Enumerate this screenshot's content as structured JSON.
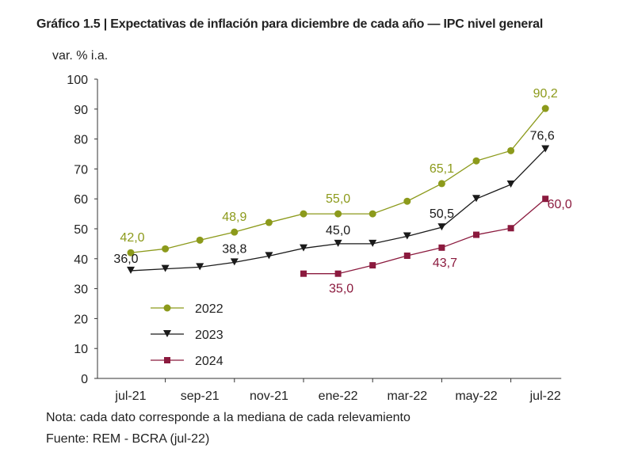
{
  "chart_data": {
    "type": "line",
    "title": "Gráfico 1.5 | Expectativas de inflación para diciembre de cada año — IPC nivel general",
    "ylabel": "var. % i.a.",
    "xlabel": "",
    "ylim": [
      0,
      100
    ],
    "yticks": [
      0,
      10,
      20,
      30,
      40,
      50,
      60,
      70,
      80,
      90,
      100
    ],
    "x": [
      "jul-21",
      "ago-21",
      "sep-21",
      "oct-21",
      "nov-21",
      "dic-21",
      "ene-22",
      "feb-22",
      "mar-22",
      "abr-22",
      "may-22",
      "jun-22",
      "jul-22"
    ],
    "xtick_labels": [
      "jul-21",
      "sep-21",
      "nov-21",
      "ene-22",
      "mar-22",
      "may-22",
      "jul-22"
    ],
    "grid": false,
    "legend_placement": "bottom-left",
    "series": [
      {
        "name": "2022",
        "color": "#8c9a1b",
        "marker": "circle",
        "values": [
          42.0,
          43.3,
          46.2,
          48.9,
          52.1,
          55.0,
          55.0,
          55.0,
          59.2,
          65.1,
          72.7,
          76.1,
          90.2
        ],
        "labels": {
          "0": "42,0",
          "3": "48,9",
          "6": "55,0",
          "9": "65,1",
          "12": "90,2"
        }
      },
      {
        "name": "2023",
        "color": "#1a1a1a",
        "marker": "triangle-down",
        "values": [
          36.0,
          36.6,
          37.2,
          38.8,
          40.9,
          43.5,
          45.0,
          45.0,
          47.5,
          50.5,
          60.0,
          64.8,
          76.6
        ],
        "labels": {
          "0": "36,0",
          "3": "38,8",
          "6": "45,0",
          "9": "50,5",
          "12": "76,6"
        }
      },
      {
        "name": "2024",
        "color": "#8b1a3e",
        "marker": "square",
        "values": [
          null,
          null,
          null,
          null,
          null,
          35.0,
          35.0,
          37.8,
          41.0,
          43.7,
          48.0,
          50.2,
          60.0
        ],
        "labels": {
          "6": "35,0",
          "9": "43,7",
          "12": "60,0"
        }
      }
    ]
  },
  "note": "Nota: cada dato corresponde a la mediana de cada relevamiento",
  "source": "Fuente: REM - BCRA (jul-22)"
}
